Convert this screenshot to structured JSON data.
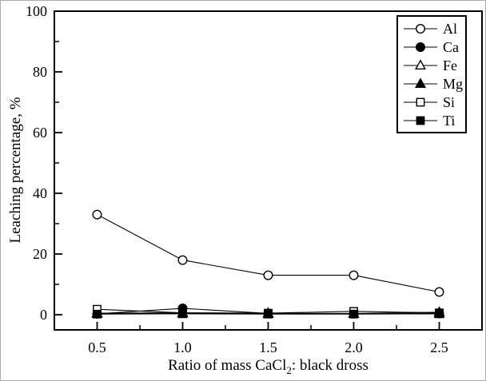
{
  "figure": {
    "background": "#ffffff",
    "frame_color": "#000000",
    "line_color": "#000000"
  },
  "chart_data": {
    "type": "line",
    "title": "",
    "xlabel": "Ratio of mass CaCl2: black dross",
    "xlabel_parts": {
      "pre": "Ratio of mass CaCl",
      "sub": "2",
      "post": ": black dross"
    },
    "ylabel": "Leaching percentage, %",
    "x": [
      0.5,
      1.0,
      1.5,
      2.0,
      2.5
    ],
    "series": [
      {
        "name": "Al",
        "marker": "circle-open",
        "values": [
          33,
          18,
          13,
          13,
          7.5
        ]
      },
      {
        "name": "Ca",
        "marker": "circle-filled",
        "values": [
          0.3,
          2.1,
          0.4,
          0.3,
          0.4
        ]
      },
      {
        "name": "Fe",
        "marker": "triangle-open",
        "values": [
          0.3,
          0.4,
          0.3,
          0.3,
          0.3
        ]
      },
      {
        "name": "Mg",
        "marker": "triangle-filled",
        "values": [
          0.5,
          0.6,
          0.5,
          0.4,
          0.8
        ]
      },
      {
        "name": "Si",
        "marker": "square-open",
        "values": [
          1.8,
          0.6,
          0.5,
          1.1,
          0.6
        ]
      },
      {
        "name": "Ti",
        "marker": "square-filled",
        "values": [
          0.2,
          0.3,
          0.2,
          0.2,
          0.3
        ]
      }
    ],
    "xlim": [
      0.25,
      2.75
    ],
    "ylim": [
      -5,
      100
    ],
    "x_major_ticks": [
      0.5,
      1.0,
      1.5,
      2.0,
      2.5
    ],
    "x_major_tick_labels": [
      "0.5",
      "1.0",
      "1.5",
      "2.0",
      "2.5"
    ],
    "x_minor_ticks": [
      0.75,
      1.25,
      1.75,
      2.25
    ],
    "y_major_ticks": [
      0,
      20,
      40,
      60,
      80,
      100
    ],
    "y_major_tick_labels": [
      "0",
      "20",
      "40",
      "60",
      "80",
      "100"
    ],
    "y_minor_ticks": [
      10,
      30,
      50,
      70,
      90
    ],
    "grid": false,
    "legend_position": "top-right",
    "legend_entries": [
      "Al",
      "Ca",
      "Fe",
      "Mg",
      "Si",
      "Ti"
    ]
  }
}
